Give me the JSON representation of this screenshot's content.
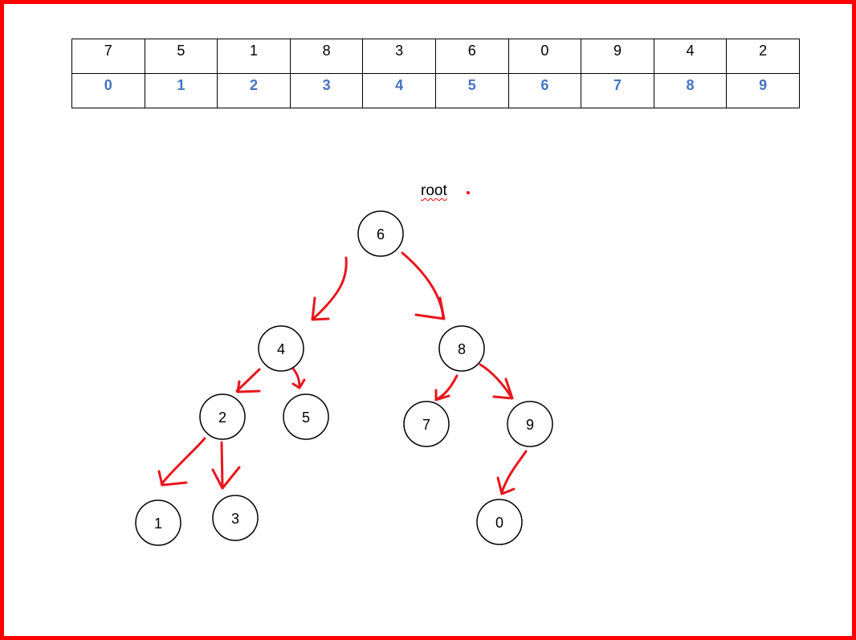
{
  "array": {
    "values": [
      "7",
      "5",
      "1",
      "8",
      "3",
      "6",
      "0",
      "9",
      "4",
      "2"
    ],
    "indices": [
      "0",
      "1",
      "2",
      "3",
      "4",
      "5",
      "6",
      "7",
      "8",
      "9"
    ],
    "index_color": "#4472c4"
  },
  "root_label": "root",
  "nodes": {
    "n6": "6",
    "n4": "4",
    "n8": "8",
    "n2": "2",
    "n5": "5",
    "n7": "7",
    "n9": "9",
    "n1": "1",
    "n3": "3",
    "n0": "0"
  },
  "colors": {
    "frame": "#ff0000",
    "arrows": "#e8161e",
    "node_stroke": "#000000"
  }
}
